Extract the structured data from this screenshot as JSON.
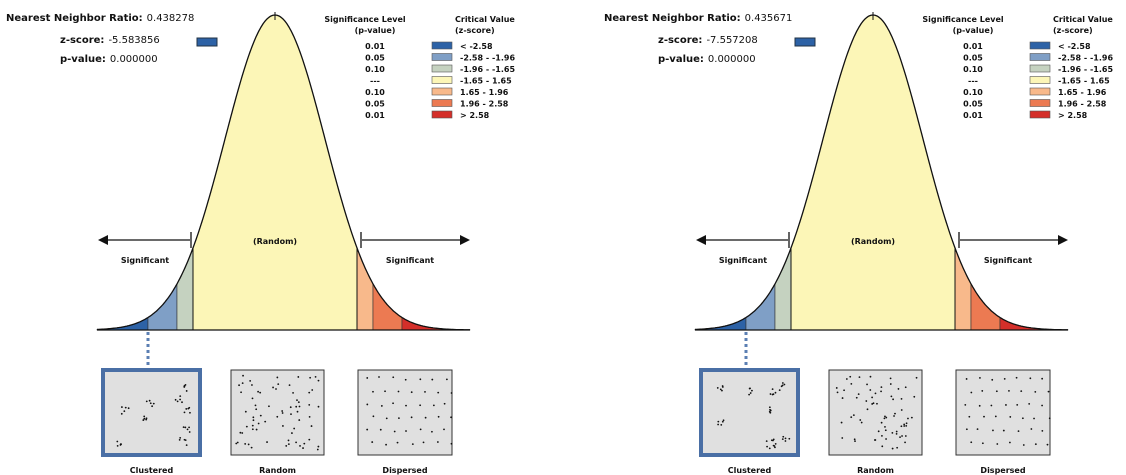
{
  "panels": [
    {
      "ratio_label": "Nearest Neighbor Ratio:",
      "ratio": "0.438278",
      "z_label": "z-score:",
      "z": "-5.583856",
      "p_label": "p-value:",
      "p": "0.000000",
      "legend": {
        "sig_header": "Significance Level",
        "sig_sub": "(p-value)",
        "crit_header": "Critical Value",
        "crit_sub": "(z-score)",
        "rows": [
          [
            "0.01",
            "< -2.58"
          ],
          [
            "0.05",
            "-2.58 - -1.96"
          ],
          [
            "0.10",
            "-1.96 - -1.65"
          ],
          [
            "---",
            "-1.65 - 1.65"
          ],
          [
            "0.10",
            "1.65 - 1.96"
          ],
          [
            "0.05",
            "1.96 - 2.58"
          ],
          [
            "0.01",
            "> 2.58"
          ]
        ]
      },
      "random_label": "(Random)",
      "significant_left": "Significant",
      "significant_right": "Significant",
      "patterns": [
        "Clustered",
        "Random",
        "Dispersed"
      ]
    },
    {
      "ratio_label": "Nearest Neighbor Ratio:",
      "ratio": "0.435671",
      "z_label": "z-score:",
      "z": "-7.557208",
      "p_label": "p-value:",
      "p": "0.000000",
      "legend": {
        "sig_header": "Significance Level",
        "sig_sub": "(p-value)",
        "crit_header": "Critical Value",
        "crit_sub": "(z-score)",
        "rows": [
          [
            "0.01",
            "< -2.58"
          ],
          [
            "0.05",
            "-2.58 - -1.96"
          ],
          [
            "0.10",
            "-1.96 - -1.65"
          ],
          [
            "---",
            "-1.65 - 1.65"
          ],
          [
            "0.10",
            "1.65 - 1.96"
          ],
          [
            "0.05",
            "1.96 - 2.58"
          ],
          [
            "0.01",
            "> 2.58"
          ]
        ]
      },
      "random_label": "(Random)",
      "significant_left": "Significant",
      "significant_right": "Significant",
      "patterns": [
        "Clustered",
        "Random",
        "Dispersed"
      ]
    }
  ]
}
